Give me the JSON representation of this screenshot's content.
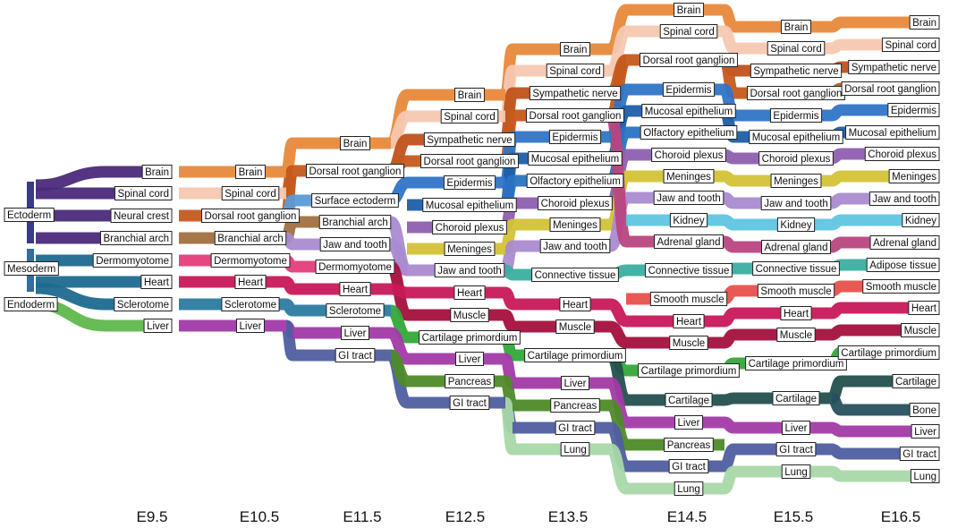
{
  "timepoints": [
    "E9.5",
    "E10.5",
    "E11.5",
    "E12.5",
    "E13.5",
    "E14.5",
    "E15.5",
    "E16.5"
  ],
  "germ_layers": [
    "Ectoderm",
    "Mesoderm",
    "Endoderm"
  ],
  "colors": {
    "Brain": "#e8893b",
    "Spinal cord": "#f6c8b1",
    "Neural crest": "#b9d83a",
    "Branchial arch": "#a07040",
    "Dorsal root ganglion": "#c65a1e",
    "Surface ectoderm": "#5b9bd5",
    "Sympathetic nerve": "#c0521c",
    "Epidermis": "#2f74c7",
    "Mucosal epithelium": "#1f5ea8",
    "Olfactory epithelium": "#2a73c2",
    "Choroid plexus": "#8e5fb0",
    "Meninges": "#d3c236",
    "Jaw and tooth": "#a98bd0",
    "Kidney": "#5ec5e0",
    "Adrenal gland": "#b8467f",
    "Connective tissue": "#3aafa0",
    "Adipose tissue": "#3aafa0",
    "Smooth muscle": "#e8504a",
    "Dermomyotome": "#e33d7b",
    "Heart": "#c8185a",
    "Muscle": "#a5103e",
    "Sclerotome": "#2b7ba0",
    "Cartilage primordium": "#33a838",
    "Cartilage": "#23504e",
    "Bone": "#284f5e",
    "Liver": "#a23aa8",
    "GI tract": "#4f5ea0",
    "Pancreas": "#4e8a28",
    "Lung": "#a8d8a8",
    "Ectoderm": "#3a3a8a",
    "Mesoderm": "#2f6f9f",
    "Endoderm": "#5fb84d",
    "Brain_e95": "#4a2a7a",
    "Spinal cord_e95": "#4a2a7a",
    "Neural crest_e95": "#4a2a7a",
    "Branchial arch_e95": "#4a2a7a",
    "Dermomyotome_e95": "#1d6a8f",
    "Heart_e95": "#1d6a8f",
    "Sclerotome_e95": "#1d6a8f",
    "Liver_e95": "#5fb84d"
  },
  "root_labels": [
    {
      "id": "ecto",
      "text": "Ectoderm"
    },
    {
      "id": "meso",
      "text": "Mesoderm"
    },
    {
      "id": "endo",
      "text": "Endoderm"
    }
  ],
  "columns": [
    {
      "t": "E9.5",
      "nodes": [
        "Brain",
        "Spinal cord",
        "Neural crest",
        "Branchial arch",
        "Dermomyotome",
        "Heart",
        "Sclerotome",
        "Liver"
      ]
    },
    {
      "t": "E10.5",
      "nodes": [
        "Brain",
        "Spinal cord",
        "Dorsal root ganglion",
        "Branchial arch",
        "Dermomyotome",
        "Heart",
        "Sclerotome",
        "Liver"
      ]
    },
    {
      "t": "E11.5",
      "nodes": [
        "Brain",
        "Dorsal root ganglion",
        "Surface ectoderm",
        "Branchial arch",
        "Jaw and tooth",
        "Dermomyotome",
        "Heart",
        "Sclerotome",
        "Liver",
        "GI tract"
      ]
    },
    {
      "t": "E12.5",
      "nodes": [
        "Brain",
        "Spinal cord",
        "Sympathetic nerve",
        "Dorsal root ganglion",
        "Epidermis",
        "Mucosal epithelium",
        "Choroid plexus",
        "Meninges",
        "Jaw and tooth",
        "Heart",
        "Muscle",
        "Cartilage primordium",
        "Liver",
        "Pancreas",
        "GI tract"
      ]
    },
    {
      "t": "E13.5",
      "nodes": [
        "Brain",
        "Spinal cord",
        "Sympathetic nerve",
        "Dorsal root ganglion",
        "Epidermis",
        "Mucosal epithelium",
        "Olfactory epithelium",
        "Choroid plexus",
        "Meninges",
        "Jaw and tooth",
        "Connective tissue",
        "Heart",
        "Muscle",
        "Cartilage primordium",
        "Liver",
        "Pancreas",
        "GI tract",
        "Lung"
      ]
    },
    {
      "t": "E14.5",
      "nodes": [
        "Brain",
        "Spinal cord",
        "Dorsal root ganglion",
        "Epidermis",
        "Mucosal epithelium",
        "Olfactory epithelium",
        "Choroid plexus",
        "Meninges",
        "Jaw and tooth",
        "Kidney",
        "Adrenal gland",
        "Connective tissue",
        "Smooth muscle",
        "Heart",
        "Muscle",
        "Cartilage primordium",
        "Cartilage",
        "Liver",
        "Pancreas",
        "GI tract",
        "Lung"
      ]
    },
    {
      "t": "E15.5",
      "nodes": [
        "Brain",
        "Spinal cord",
        "Sympathetic nerve",
        "Dorsal root ganglion",
        "Epidermis",
        "Mucosal epithelium",
        "Choroid plexus",
        "Meninges",
        "Jaw and tooth",
        "Kidney",
        "Adrenal gland",
        "Connective tissue",
        "Smooth muscle",
        "Heart",
        "Muscle",
        "Cartilage primordium",
        "Cartilage",
        "Liver",
        "GI tract",
        "Lung"
      ]
    },
    {
      "t": "E16.5",
      "nodes": [
        "Brain",
        "Spinal cord",
        "Sympathetic nerve",
        "Dorsal root ganglion",
        "Epidermis",
        "Mucosal epithelium",
        "Choroid plexus",
        "Meninges",
        "Jaw and tooth",
        "Kidney",
        "Adrenal gland",
        "Adipose tissue",
        "Smooth muscle",
        "Heart",
        "Muscle",
        "Cartilage primordium",
        "Cartilage",
        "Bone",
        "Liver",
        "GI tract",
        "Lung"
      ]
    }
  ]
}
